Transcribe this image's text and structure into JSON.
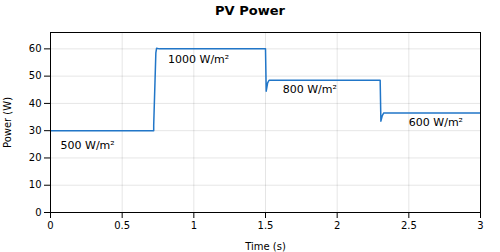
{
  "chart_data": {
    "type": "line",
    "title": "PV Power",
    "xlabel": "Time (s)",
    "ylabel": "Power (W)",
    "x": [
      0.0,
      0.0,
      0.72,
      0.72,
      0.735,
      0.74,
      0.76,
      1.499,
      1.5,
      1.505,
      1.515,
      1.525,
      2.295,
      2.3,
      2.305,
      2.315,
      2.325,
      3.0
    ],
    "values": [
      30.0,
      30.0,
      30.0,
      32.0,
      58.5,
      60.2,
      60.0,
      60.0,
      60.0,
      44.5,
      47.5,
      48.5,
      48.5,
      48.5,
      33.5,
      35.5,
      36.5,
      36.5
    ],
    "color": "#2176C8",
    "xlim": [
      0,
      3
    ],
    "xticks": [
      0,
      0.5,
      1,
      1.5,
      2,
      2.5,
      3
    ],
    "ylim": [
      0,
      66
    ],
    "yticks": [
      0,
      10,
      20,
      30,
      40,
      50,
      60
    ],
    "grid": true,
    "annotations": [
      {
        "text": "500 W/m²",
        "x": 0.07,
        "y": 26.0
      },
      {
        "text": "1000 W/m²",
        "x": 0.82,
        "y": 57.5
      },
      {
        "text": "800 W/m²",
        "x": 1.62,
        "y": 46.5
      },
      {
        "text": "600 W/m²",
        "x": 2.5,
        "y": 34.5
      }
    ]
  }
}
